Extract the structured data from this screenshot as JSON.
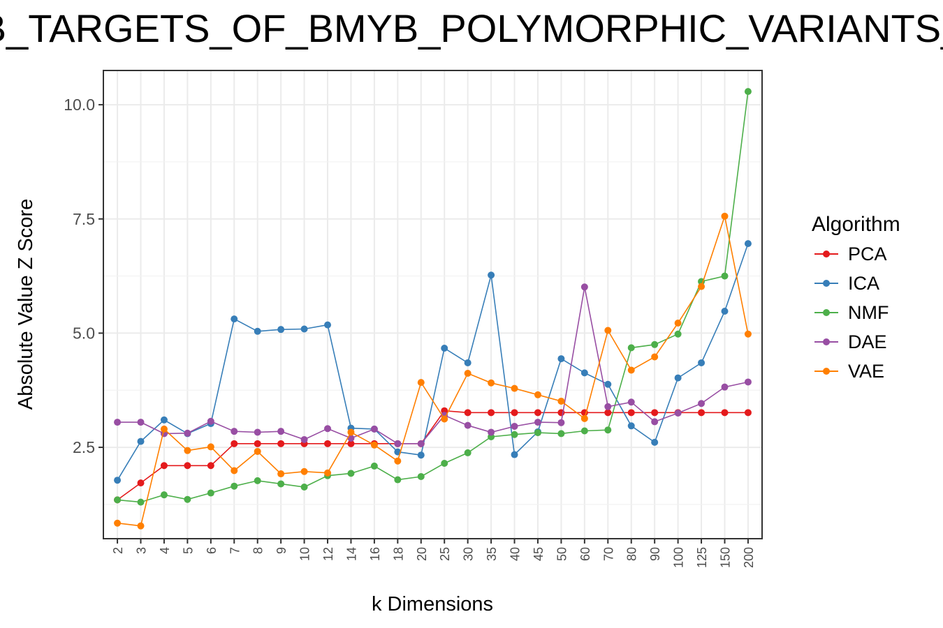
{
  "chart_data": {
    "type": "line",
    "title": "B_TARGETS_OF_BMYB_POLYMORPHIC_VARIANTS_",
    "xlabel": "k Dimensions",
    "ylabel": "Absolute Value Z Score",
    "categories": [
      "2",
      "3",
      "4",
      "5",
      "6",
      "7",
      "8",
      "9",
      "10",
      "12",
      "14",
      "16",
      "18",
      "20",
      "25",
      "30",
      "35",
      "40",
      "45",
      "50",
      "60",
      "70",
      "80",
      "90",
      "100",
      "125",
      "150",
      "200"
    ],
    "ylim": [
      0.5,
      10.75
    ],
    "yticks": [
      "2.5",
      "5.0",
      "7.5",
      "10.0"
    ],
    "grid": true,
    "legend_title": "Algorithm",
    "legend_position": "right",
    "series": [
      {
        "name": "PCA",
        "color": "#e41a1c",
        "values": [
          1.35,
          1.72,
          2.1,
          2.1,
          2.1,
          2.58,
          2.58,
          2.58,
          2.58,
          2.58,
          2.58,
          2.58,
          2.58,
          2.58,
          3.3,
          3.26,
          3.26,
          3.26,
          3.26,
          3.26,
          3.26,
          3.26,
          3.26,
          3.26,
          3.26,
          3.26,
          3.26,
          3.26
        ]
      },
      {
        "name": "ICA",
        "color": "#377eb8",
        "values": [
          1.78,
          2.63,
          3.1,
          2.8,
          3.02,
          5.31,
          5.04,
          5.08,
          5.09,
          5.18,
          2.92,
          2.9,
          2.4,
          2.33,
          4.67,
          4.35,
          6.27,
          2.34,
          2.84,
          4.44,
          4.13,
          3.88,
          2.97,
          2.61,
          4.02,
          4.35,
          5.48,
          6.96
        ]
      },
      {
        "name": "NMF",
        "color": "#4daf4a",
        "values": [
          1.35,
          1.3,
          1.46,
          1.36,
          1.5,
          1.65,
          1.77,
          1.7,
          1.63,
          1.88,
          1.93,
          2.09,
          1.79,
          1.86,
          2.15,
          2.38,
          2.73,
          2.78,
          2.82,
          2.8,
          2.86,
          2.88,
          4.68,
          4.75,
          4.98,
          6.13,
          6.25,
          10.29
        ]
      },
      {
        "name": "DAE",
        "color": "#984ea3",
        "values": [
          3.05,
          3.05,
          2.8,
          2.81,
          3.07,
          2.85,
          2.83,
          2.85,
          2.67,
          2.91,
          2.7,
          2.9,
          2.58,
          2.58,
          3.2,
          2.98,
          2.83,
          2.96,
          3.05,
          3.04,
          6.01,
          3.39,
          3.49,
          3.06,
          3.25,
          3.46,
          3.82,
          3.93
        ]
      },
      {
        "name": "VAE",
        "color": "#ff7f00",
        "values": [
          0.84,
          0.78,
          2.9,
          2.43,
          2.51,
          1.99,
          2.41,
          1.92,
          1.97,
          1.94,
          2.83,
          2.55,
          2.2,
          3.92,
          3.12,
          4.12,
          3.91,
          3.79,
          3.65,
          3.51,
          3.13,
          5.06,
          4.19,
          4.48,
          5.22,
          6.02,
          7.56,
          4.98
        ]
      }
    ]
  }
}
